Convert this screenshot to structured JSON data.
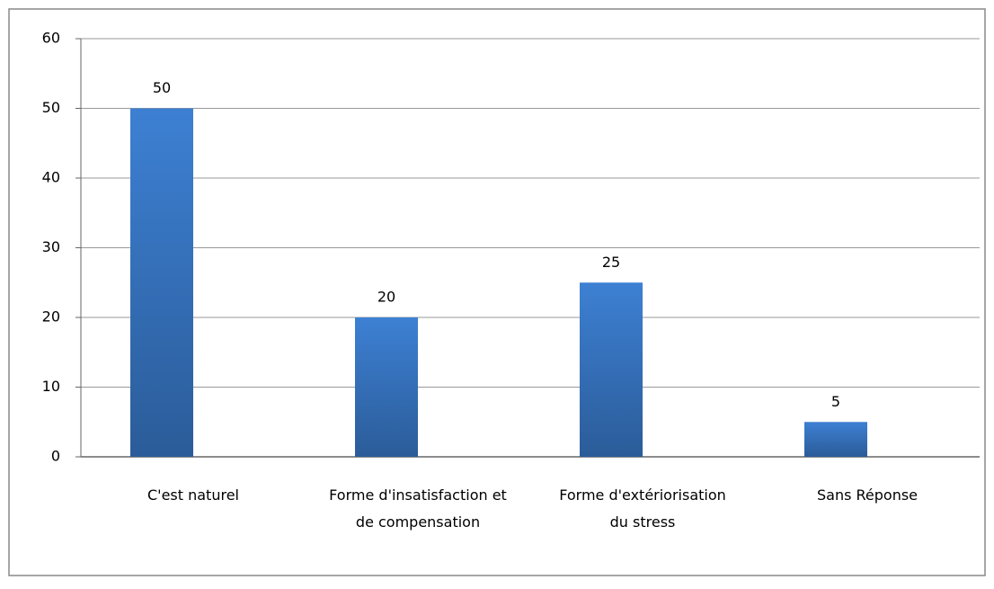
{
  "chart_data": {
    "type": "bar",
    "categories": [
      "C'est naturel",
      "Forme d'insatisfaction et de compensation",
      "Forme d'extériorisation du stress",
      "Sans Réponse"
    ],
    "values": [
      50,
      20,
      25,
      5
    ],
    "color": "#3a7ccc",
    "ylim": [
      0,
      60
    ],
    "yticks": [
      0,
      10,
      20,
      30,
      40,
      50,
      60
    ],
    "grid": true
  }
}
